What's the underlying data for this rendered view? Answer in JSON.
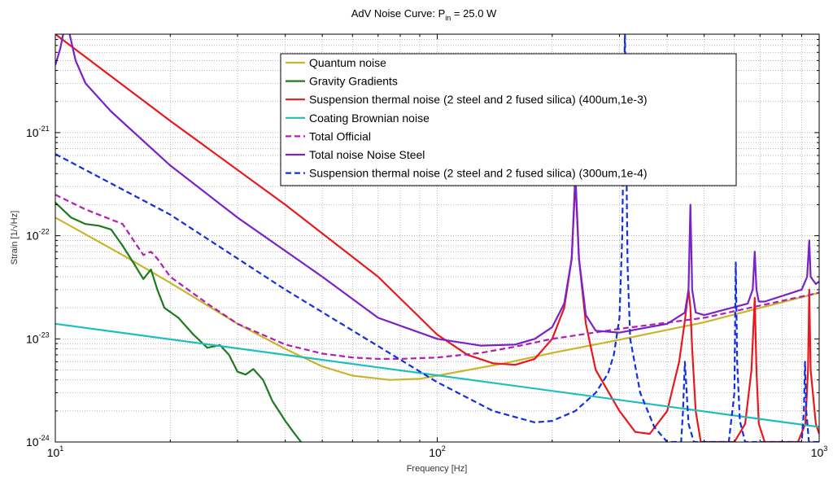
{
  "chart_data": {
    "type": "line",
    "title": "AdV Noise Curve: P",
    "title_sub": "in",
    "title_tail": " = 25.0 W",
    "xlabel": "Frequency [Hz]",
    "ylabel": "Strain [1/√Hz]",
    "xscale": "log",
    "yscale": "log",
    "xlim": [
      10,
      1000
    ],
    "ylim": [
      1e-24,
      9e-21
    ],
    "grid": true,
    "legend_position": "top-center",
    "x_ticks": [
      {
        "base": "10",
        "exp": "1"
      },
      {
        "base": "10",
        "exp": "2"
      },
      {
        "base": "10",
        "exp": "3"
      }
    ],
    "y_ticks": [
      {
        "base": "10",
        "exp": "-24"
      },
      {
        "base": "10",
        "exp": "-23"
      },
      {
        "base": "10",
        "exp": "-22"
      },
      {
        "base": "10",
        "exp": "-21"
      }
    ],
    "series": [
      {
        "name": "Quantum noise",
        "color": "#c8b52a",
        "dash": "solid",
        "x": [
          10,
          15,
          20,
          30,
          40,
          50,
          60,
          75,
          90,
          100,
          150,
          200,
          300,
          500,
          1000
        ],
        "y": [
          1.5e-22,
          6.5e-23,
          3.5e-23,
          1.4e-23,
          8e-24,
          5.4e-24,
          4.4e-24,
          4e-24,
          4.1e-24,
          4.4e-24,
          5.8e-24,
          7.3e-24,
          9.8e-24,
          1.45e-23,
          2.8e-23
        ]
      },
      {
        "name": "Gravity Gradients",
        "color": "#1e7a1e",
        "dash": "solid",
        "x": [
          10,
          11,
          12,
          13,
          14,
          15,
          16,
          17,
          17.8,
          18.5,
          19.3,
          21,
          23,
          25,
          27,
          28.5,
          30,
          31.5,
          33,
          35,
          37,
          40,
          42,
          44
        ],
        "y": [
          2.1e-22,
          1.5e-22,
          1.3e-22,
          1.25e-22,
          1.15e-22,
          8e-23,
          5.5e-23,
          3.8e-23,
          4.7e-23,
          3e-23,
          2e-23,
          1.6e-23,
          1.1e-23,
          8.2e-24,
          8.7e-24,
          7e-24,
          4.8e-24,
          4.5e-24,
          5.1e-24,
          4e-24,
          2.5e-24,
          1.6e-24,
          1.25e-24,
          1e-24
        ]
      },
      {
        "name": "Suspension thermal noise (2 steel and  2 fused silica) (400um,1e-3)",
        "color": "#e8181c",
        "dash": "solid",
        "x": [
          10,
          20,
          40,
          70,
          100,
          120,
          140,
          160,
          180,
          200,
          215,
          225,
          230,
          235,
          245,
          260,
          300,
          330,
          360,
          400,
          430,
          445,
          455,
          460,
          465,
          475,
          490,
          520,
          560,
          600,
          640,
          665,
          678,
          685,
          695,
          720,
          770,
          820,
          880,
          920,
          935,
          942,
          950,
          980,
          1000
        ],
        "y": [
          9e-21,
          1.3e-21,
          2e-22,
          4e-23,
          1.1e-23,
          7e-24,
          5.8e-24,
          5.6e-24,
          6.4e-24,
          1e-23,
          2e-23,
          6e-23,
          3.5e-22,
          6e-23,
          1.4e-23,
          5e-24,
          2e-24,
          1.25e-24,
          1.2e-24,
          2e-24,
          6e-24,
          1.5e-23,
          3e-23,
          2e-23,
          8e-24,
          2e-24,
          1e-24,
          1e-24,
          1e-24,
          1e-24,
          1.5e-24,
          5e-24,
          2.5e-23,
          5e-24,
          1.5e-24,
          1e-24,
          1e-24,
          1e-24,
          1e-24,
          1.5e-24,
          5e-24,
          3e-23,
          5e-24,
          1.5e-24,
          1.2e-24
        ]
      },
      {
        "name": "Coating Brownian noise",
        "color": "#1fbdbd",
        "dash": "solid",
        "x": [
          10,
          1000
        ],
        "y": [
          1.4e-23,
          1.4e-24
        ]
      },
      {
        "name": "Total Official",
        "color": "#b21eb2",
        "dash": "dashed",
        "x": [
          10,
          12,
          15,
          17,
          17.8,
          18.5,
          20,
          25,
          30,
          40,
          50,
          60,
          70,
          80,
          100,
          130,
          160,
          200,
          300,
          500,
          1000
        ],
        "y": [
          2.5e-22,
          1.8e-22,
          1.3e-22,
          6.5e-23,
          7e-23,
          6e-23,
          4e-23,
          2.2e-23,
          1.4e-23,
          8.8e-24,
          7.2e-24,
          6.6e-24,
          6.4e-24,
          6.4e-24,
          6.6e-24,
          7.3e-24,
          8.4e-24,
          1e-23,
          1.25e-23,
          1.6e-23,
          2.8e-23
        ]
      },
      {
        "name": "Total noise Noise Steel",
        "color": "#7a22c8",
        "dash": "solid",
        "x": [
          10,
          10.3,
          10.6,
          10.9,
          11.3,
          12,
          14,
          20,
          30,
          50,
          70,
          100,
          130,
          160,
          180,
          200,
          215,
          225,
          230,
          235,
          245,
          260,
          300,
          400,
          445,
          455,
          460,
          465,
          475,
          500,
          650,
          670,
          678,
          685,
          695,
          720,
          900,
          930,
          942,
          950,
          980,
          1000
        ],
        "y": [
          4.5e-21,
          6.5e-21,
          1.1e-20,
          9e-21,
          5e-21,
          3e-21,
          1.6e-21,
          4.8e-22,
          1.5e-22,
          4e-23,
          1.6e-23,
          1e-23,
          8.6e-24,
          8.8e-24,
          1e-23,
          1.3e-23,
          2.2e-23,
          6e-23,
          4e-22,
          6e-23,
          1.7e-23,
          1.2e-23,
          1.15e-23,
          1.4e-23,
          1.8e-23,
          3e-23,
          2e-22,
          3e-23,
          1.8e-23,
          1.7e-23,
          2.2e-23,
          3e-23,
          7e-23,
          3e-23,
          2.3e-23,
          2.3e-23,
          3e-23,
          4e-23,
          9e-23,
          4e-23,
          3.4e-23,
          3.6e-23
        ]
      },
      {
        "name": "Suspension thermal noise (2 steel and  2 fused silica) (300um,1e-4)",
        "color": "#1230e0",
        "dash": "dashed",
        "x": [
          10,
          20,
          40,
          70,
          100,
          140,
          180,
          200,
          230,
          260,
          280,
          290,
          300,
          305,
          310,
          315,
          320,
          340,
          370,
          400,
          420,
          435,
          440,
          445,
          455,
          470,
          500,
          540,
          580,
          600,
          605,
          610,
          620,
          640,
          680,
          740,
          800,
          860,
          900,
          912,
          918,
          925,
          940,
          980,
          1000
        ],
        "y": [
          6.2e-22,
          1.6e-22,
          3e-23,
          8.5e-24,
          3.8e-24,
          2e-24,
          1.55e-24,
          1.6e-24,
          2e-24,
          3e-24,
          4.6e-24,
          7e-24,
          1.6e-23,
          1e-22,
          1e-20,
          5e-23,
          1e-23,
          3e-24,
          1.4e-24,
          1e-24,
          1e-24,
          1e-24,
          2e-24,
          6e-24,
          1.5e-24,
          1e-24,
          1e-24,
          1e-24,
          1e-24,
          3e-24,
          5.5e-23,
          6e-24,
          1.6e-24,
          1e-24,
          1e-24,
          1e-24,
          1e-24,
          1e-24,
          1e-24,
          2e-24,
          6e-24,
          2e-24,
          1e-24,
          1e-24,
          1e-24
        ]
      }
    ]
  }
}
